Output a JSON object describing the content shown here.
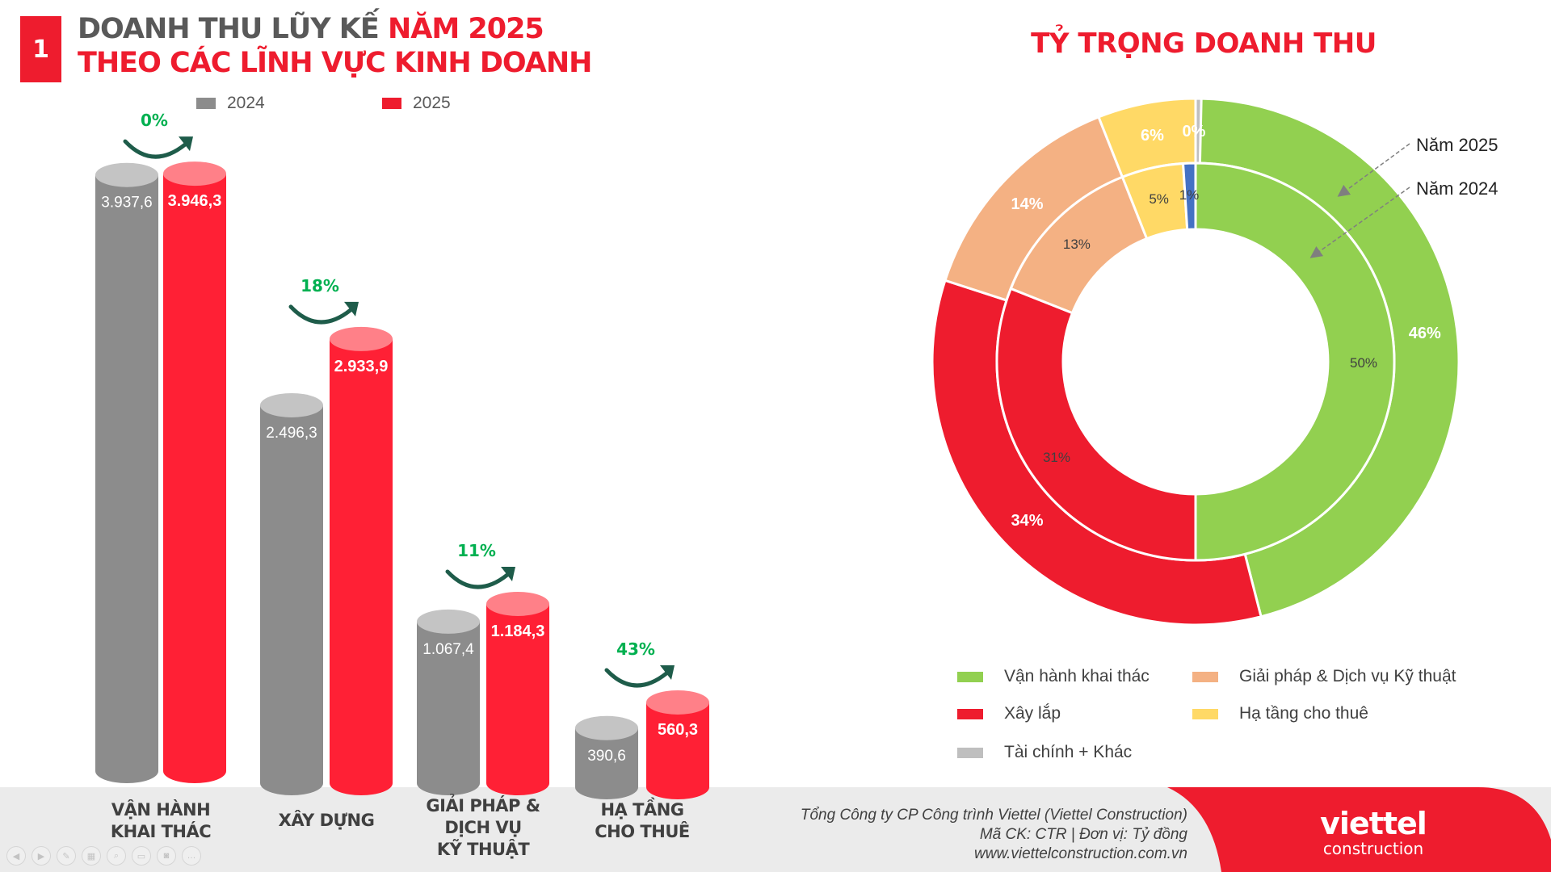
{
  "header": {
    "badge": "1",
    "line1_gray": "DOANH THU LŨY KẾ ",
    "line1_red": "NĂM 2025",
    "line2": "THEO CÁC LĨNH VỰC KINH DOANH"
  },
  "chart_data": [
    {
      "type": "bar",
      "title": "DOANH THU LŨY KẾ NĂM 2025 THEO CÁC LĨNH VỰC KINH DOANH",
      "categories": [
        "VẬN HÀNH KHAI THÁC",
        "XÂY DỰNG",
        "GIẢI PHÁP & DỊCH VỤ KỸ THUẬT",
        "HẠ TẦNG CHO THUÊ"
      ],
      "series": [
        {
          "name": "2024",
          "color": "#8c8c8c",
          "values": [
            3937.6,
            2496.3,
            1067.4,
            390.6
          ],
          "labels": [
            "3.937,6",
            "2.496,3",
            "1.067,4",
            "390,6"
          ]
        },
        {
          "name": "2025",
          "color": "#ff2035",
          "values": [
            3946.3,
            2933.9,
            1184.3,
            560.3
          ],
          "labels": [
            "3.946,3",
            "2.933,9",
            "1.184,3",
            "560,3"
          ]
        }
      ],
      "growth": [
        "0%",
        "18%",
        "11%",
        "43%"
      ],
      "legend_position": "top"
    },
    {
      "type": "pie",
      "title": "TỶ TRỌNG DOANH THU",
      "categories": [
        "Vận hành khai thác",
        "Xây lắp",
        "Giải pháp & Dịch vụ Kỹ thuật",
        "Hạ tầng cho thuê",
        "Tài chính + Khác"
      ],
      "colors": [
        "#92d050",
        "#ee1c2e",
        "#f4b183",
        "#ffd966",
        "#bfbfbf"
      ],
      "series": [
        {
          "name": "Năm 2025",
          "values": [
            46,
            34,
            14,
            6,
            0
          ],
          "labels": [
            "46%",
            "34%",
            "14%",
            "6%",
            "0%"
          ]
        },
        {
          "name": "Năm 2024",
          "values": [
            50,
            31,
            13,
            5,
            1
          ],
          "labels": [
            "50%",
            "31%",
            "13%",
            "5%",
            "1%"
          ]
        }
      ],
      "legend_position": "bottom"
    }
  ],
  "category_labels": [
    [
      "VẬN HÀNH",
      "KHAI THÁC"
    ],
    [
      "XÂY DỰNG"
    ],
    [
      "GIẢI PHÁP &",
      "DỊCH VỤ",
      "KỸ THUẬT"
    ],
    [
      "HẠ TẦNG",
      "CHO THUÊ"
    ]
  ],
  "donut_annotations": [
    "Năm 2025",
    "Năm 2024"
  ],
  "footer": {
    "line1": "Tổng Công ty CP Công trình Viettel (Viettel Construction)",
    "line2": "Mã CK: CTR  |  Đơn vị: Tỷ đồng",
    "line3": "www.viettelconstruction.com.vn",
    "brand_name": "viettel",
    "brand_sub": "construction"
  },
  "colors": {
    "accent": "#ee1c2e",
    "gray": "#8c8c8c",
    "growth": "#00b050"
  }
}
